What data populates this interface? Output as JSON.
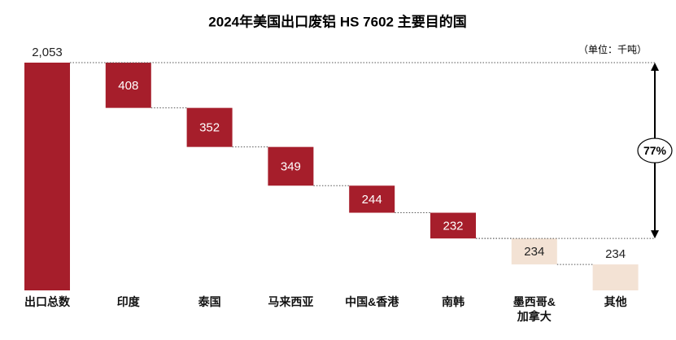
{
  "chart_data": {
    "type": "waterfall",
    "title": "2024年美国出口废铝 HS 7602 主要目的国",
    "unit_note": "（单位：千吨）",
    "annotation": "77%",
    "categories": [
      "出口总数",
      "印度",
      "泰国",
      "马来西亚",
      "中国&香港",
      "南韩",
      "墨西哥&加拿大",
      "其他"
    ],
    "values": [
      2053,
      408,
      352,
      349,
      244,
      232,
      234,
      234
    ],
    "value_labels": [
      "2,053",
      "408",
      "352",
      "349",
      "244",
      "232",
      "234",
      "234"
    ],
    "colors": [
      "#a61e2b",
      "#a61e2b",
      "#a61e2b",
      "#a61e2b",
      "#a61e2b",
      "#a61e2b",
      "#f3e2d4",
      "#f3e2d4"
    ]
  }
}
